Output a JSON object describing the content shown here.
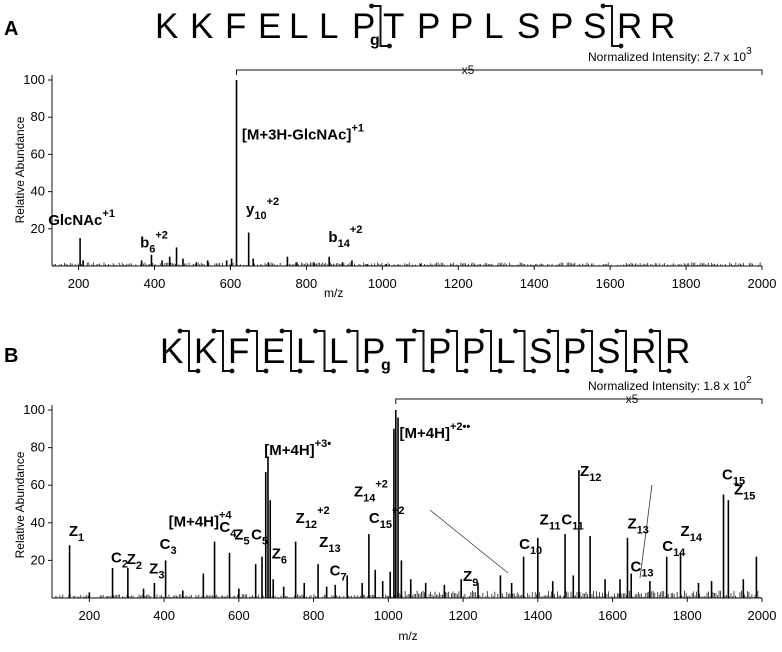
{
  "panels": [
    {
      "label": "A",
      "sequence": [
        "K",
        "K",
        "F",
        "E",
        "L",
        "L",
        "P",
        "g",
        "T",
        "P",
        "P",
        "L",
        "S",
        "P",
        "S",
        "R",
        "R"
      ],
      "normalized_intensity": {
        "text": "Normalized Intensity: 2.7 x 10",
        "exponent": "3"
      },
      "magnification": "x5",
      "ylabel": "Relative Abundance",
      "xlabel": "m/z",
      "annotations": [
        {
          "text": "GlcNAc",
          "sup": "+1",
          "mz": 120,
          "y": 22
        },
        {
          "text": "b",
          "sub": "6",
          "sup": "+2",
          "mz": 362,
          "y": 10
        },
        {
          "text": "[M+3H-GlcNAc]",
          "sup": "+1",
          "mz": 630,
          "y": 68
        },
        {
          "text": "y",
          "sub": "10",
          "sup": "+2",
          "mz": 641,
          "y": 28
        },
        {
          "text": "b",
          "sub": "14",
          "sup": "+2",
          "mz": 858,
          "y": 13
        }
      ]
    },
    {
      "label": "B",
      "sequence": [
        "K",
        "K",
        "F",
        "E",
        "L",
        "L",
        "P",
        "g",
        "T",
        "P",
        "P",
        "L",
        "S",
        "P",
        "S",
        "R",
        "R"
      ],
      "normalized_intensity": {
        "text": "Normalized Intensity: 1.8 x 10",
        "exponent": "2"
      },
      "magnification": "x5",
      "ylabel": "Relative Abundance",
      "xlabel": "m/z",
      "annotations": [
        {
          "text": "Z",
          "sub": "1",
          "mz": 145,
          "y": 33
        },
        {
          "text": "C",
          "sub": "2",
          "mz": 258,
          "y": 19
        },
        {
          "text": "Z",
          "sub": "2",
          "mz": 300,
          "y": 18
        },
        {
          "text": "Z",
          "sub": "3",
          "mz": 360,
          "y": 13
        },
        {
          "text": "C",
          "sub": "3",
          "mz": 388,
          "y": 26
        },
        {
          "text": "[M+4H]",
          "sup": "+4",
          "mz": 412,
          "y": 38
        },
        {
          "text": "C",
          "sub": "4",
          "mz": 548,
          "y": 35
        },
        {
          "text": "Z",
          "sub": "5",
          "mz": 588,
          "y": 31
        },
        {
          "text": "C",
          "sub": "5",
          "mz": 633,
          "y": 31
        },
        {
          "text": "[M+4H]",
          "sup": "+3•",
          "mz": 668,
          "y": 76
        },
        {
          "text": "Z",
          "sub": "6",
          "mz": 688,
          "y": 21
        },
        {
          "text": "Z",
          "sub": "12",
          "sup": "+2",
          "mz": 752,
          "y": 40
        },
        {
          "text": "Z",
          "sub": "13",
          "mz": 815,
          "y": 27
        },
        {
          "text": "C",
          "sub": "7",
          "mz": 843,
          "y": 12
        },
        {
          "text": "Z",
          "sub": "14",
          "sup": "+2",
          "mz": 908,
          "y": 54
        },
        {
          "text": "C",
          "sub": "15",
          "sup": "+2",
          "mz": 948,
          "y": 40
        },
        {
          "text": "[M+4H]",
          "sup": "+2••",
          "mz": 1030,
          "y": 85
        },
        {
          "text": "Z",
          "sub": "9",
          "mz": 1200,
          "y": 9
        },
        {
          "text": "C",
          "sub": "10",
          "mz": 1350,
          "y": 26
        },
        {
          "text": "Z",
          "sub": "11",
          "mz": 1405,
          "y": 39
        },
        {
          "text": "C",
          "sub": "11",
          "mz": 1463,
          "y": 39
        },
        {
          "text": "Z",
          "sub": "12",
          "mz": 1513,
          "y": 65
        },
        {
          "text": "Z",
          "sub": "13",
          "mz": 1640,
          "y": 37
        },
        {
          "text": "C",
          "sub": "13",
          "mz": 1648,
          "y": 14
        },
        {
          "text": "C",
          "sub": "14",
          "mz": 1733,
          "y": 25
        },
        {
          "text": "Z",
          "sub": "14",
          "mz": 1782,
          "y": 33
        },
        {
          "text": "C",
          "sub": "15",
          "mz": 1893,
          "y": 63
        },
        {
          "text": "Z",
          "sub": "15",
          "mz": 1925,
          "y": 55
        }
      ]
    }
  ],
  "chart_data": [
    {
      "type": "bar",
      "title": "",
      "xlabel": "m/z",
      "ylabel": "Relative Abundance",
      "xlim": [
        130,
        2000
      ],
      "ylim": [
        0,
        100
      ],
      "xticks": [
        200,
        400,
        600,
        800,
        1000,
        1200,
        1400,
        1600,
        1800,
        2000
      ],
      "yticks": [
        20,
        40,
        60,
        80,
        100
      ],
      "magnified_region": {
        "label": "x5",
        "from": 616,
        "to": 2000
      },
      "peaks": [
        {
          "mz": 204,
          "intensity": 15
        },
        {
          "mz": 212,
          "intensity": 3
        },
        {
          "mz": 366,
          "intensity": 3
        },
        {
          "mz": 392,
          "intensity": 6
        },
        {
          "mz": 420,
          "intensity": 3
        },
        {
          "mz": 440,
          "intensity": 5
        },
        {
          "mz": 458,
          "intensity": 10
        },
        {
          "mz": 475,
          "intensity": 4
        },
        {
          "mz": 510,
          "intensity": 2
        },
        {
          "mz": 540,
          "intensity": 3
        },
        {
          "mz": 590,
          "intensity": 3
        },
        {
          "mz": 603,
          "intensity": 4
        },
        {
          "mz": 616,
          "intensity": 100
        },
        {
          "mz": 648,
          "intensity": 18
        },
        {
          "mz": 660,
          "intensity": 4
        },
        {
          "mz": 700,
          "intensity": 2
        },
        {
          "mz": 750,
          "intensity": 5
        },
        {
          "mz": 775,
          "intensity": 2
        },
        {
          "mz": 820,
          "intensity": 2
        },
        {
          "mz": 860,
          "intensity": 5
        },
        {
          "mz": 895,
          "intensity": 2
        },
        {
          "mz": 920,
          "intensity": 3
        },
        {
          "mz": 960,
          "intensity": 1
        },
        {
          "mz": 1010,
          "intensity": 1
        },
        {
          "mz": 1100,
          "intensity": 1
        }
      ]
    },
    {
      "type": "bar",
      "title": "",
      "xlabel": "m/z",
      "ylabel": "Relative Abundance",
      "xlim": [
        100,
        2000
      ],
      "ylim": [
        0,
        100
      ],
      "xticks": [
        200,
        400,
        600,
        800,
        1000,
        1200,
        1400,
        1600,
        1800,
        2000
      ],
      "yticks": [
        20,
        40,
        60,
        80,
        100
      ],
      "magnified_region": {
        "label": "x5",
        "from": 1020,
        "to": 2000
      },
      "peaks": [
        {
          "mz": 147,
          "intensity": 28
        },
        {
          "mz": 200,
          "intensity": 3
        },
        {
          "mz": 262,
          "intensity": 16
        },
        {
          "mz": 303,
          "intensity": 16
        },
        {
          "mz": 345,
          "intensity": 5
        },
        {
          "mz": 374,
          "intensity": 8
        },
        {
          "mz": 404,
          "intensity": 20
        },
        {
          "mz": 450,
          "intensity": 4
        },
        {
          "mz": 505,
          "intensity": 13
        },
        {
          "mz": 535,
          "intensity": 30
        },
        {
          "mz": 575,
          "intensity": 24
        },
        {
          "mz": 600,
          "intensity": 5
        },
        {
          "mz": 645,
          "intensity": 18
        },
        {
          "mz": 662,
          "intensity": 22
        },
        {
          "mz": 672,
          "intensity": 67
        },
        {
          "mz": 678,
          "intensity": 75
        },
        {
          "mz": 684,
          "intensity": 52
        },
        {
          "mz": 692,
          "intensity": 10
        },
        {
          "mz": 720,
          "intensity": 6
        },
        {
          "mz": 752,
          "intensity": 30
        },
        {
          "mz": 775,
          "intensity": 8
        },
        {
          "mz": 812,
          "intensity": 18
        },
        {
          "mz": 835,
          "intensity": 6
        },
        {
          "mz": 858,
          "intensity": 7
        },
        {
          "mz": 890,
          "intensity": 12
        },
        {
          "mz": 930,
          "intensity": 8
        },
        {
          "mz": 948,
          "intensity": 34
        },
        {
          "mz": 965,
          "intensity": 15
        },
        {
          "mz": 985,
          "intensity": 9
        },
        {
          "mz": 1005,
          "intensity": 14
        },
        {
          "mz": 1015,
          "intensity": 90
        },
        {
          "mz": 1020,
          "intensity": 100
        },
        {
          "mz": 1026,
          "intensity": 96
        },
        {
          "mz": 1035,
          "intensity": 20
        },
        {
          "mz": 1060,
          "intensity": 10
        },
        {
          "mz": 1100,
          "intensity": 8
        },
        {
          "mz": 1150,
          "intensity": 7
        },
        {
          "mz": 1195,
          "intensity": 10
        },
        {
          "mz": 1240,
          "intensity": 8
        },
        {
          "mz": 1300,
          "intensity": 12
        },
        {
          "mz": 1330,
          "intensity": 8
        },
        {
          "mz": 1362,
          "intensity": 22
        },
        {
          "mz": 1400,
          "intensity": 32
        },
        {
          "mz": 1440,
          "intensity": 9
        },
        {
          "mz": 1473,
          "intensity": 34
        },
        {
          "mz": 1495,
          "intensity": 12
        },
        {
          "mz": 1510,
          "intensity": 68
        },
        {
          "mz": 1540,
          "intensity": 33
        },
        {
          "mz": 1580,
          "intensity": 10
        },
        {
          "mz": 1620,
          "intensity": 10
        },
        {
          "mz": 1640,
          "intensity": 32
        },
        {
          "mz": 1650,
          "intensity": 13
        },
        {
          "mz": 1700,
          "intensity": 9
        },
        {
          "mz": 1745,
          "intensity": 22
        },
        {
          "mz": 1782,
          "intensity": 24
        },
        {
          "mz": 1830,
          "intensity": 8
        },
        {
          "mz": 1865,
          "intensity": 9
        },
        {
          "mz": 1897,
          "intensity": 55
        },
        {
          "mz": 1910,
          "intensity": 52
        },
        {
          "mz": 1950,
          "intensity": 10
        },
        {
          "mz": 1985,
          "intensity": 22
        }
      ]
    }
  ]
}
